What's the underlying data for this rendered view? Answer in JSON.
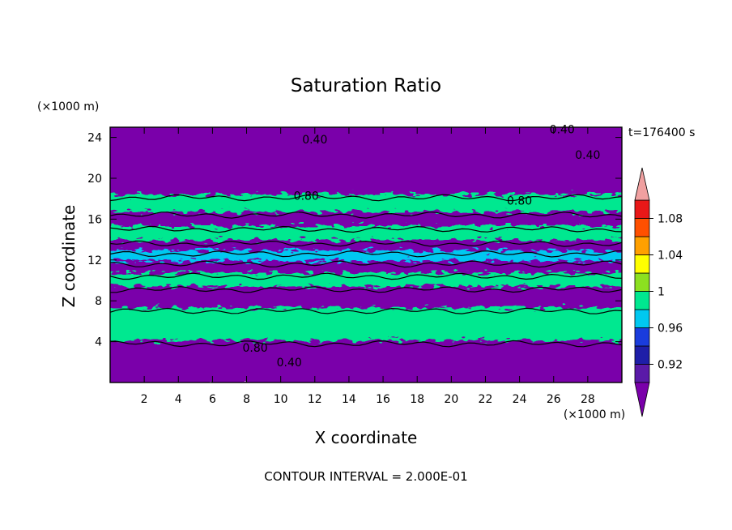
{
  "chart_data": {
    "type": "heatmap",
    "title": "Saturation Ratio",
    "xlabel": "X coordinate",
    "ylabel": "Z coordinate",
    "x_unit": "(×1000 m)",
    "y_unit": "(×1000 m)",
    "time_label": "t=176400 s",
    "footer": "CONTOUR INTERVAL = 2.000E-01",
    "xlim": [
      0,
      30
    ],
    "ylim": [
      0,
      25
    ],
    "x_ticks": [
      2,
      4,
      6,
      8,
      10,
      12,
      14,
      16,
      18,
      20,
      22,
      24,
      26,
      28
    ],
    "y_ticks": [
      4,
      8,
      12,
      16,
      20,
      24
    ],
    "contour_labels": [
      {
        "text": "0.40",
        "x": 12.0,
        "z": 23.8
      },
      {
        "text": "0.40",
        "x": 26.5,
        "z": 24.8
      },
      {
        "text": "0.40",
        "x": 28.0,
        "z": 22.3
      },
      {
        "text": "0.80",
        "x": 11.5,
        "z": 18.3
      },
      {
        "text": "0.80",
        "x": 24.0,
        "z": 17.8
      },
      {
        "text": "0.80",
        "x": 8.5,
        "z": 3.4
      },
      {
        "text": "0.40",
        "x": 10.5,
        "z": 2.0
      }
    ],
    "colorbar": {
      "labels": [
        "1.08",
        "1.04",
        "1",
        "0.96",
        "0.92"
      ],
      "label_values": [
        1.08,
        1.04,
        1.0,
        0.96,
        0.92
      ],
      "levels": [
        0.9,
        0.92,
        0.94,
        0.96,
        0.98,
        1.0,
        1.02,
        1.04,
        1.06,
        1.08,
        1.1
      ],
      "colors": [
        "#5a1aa8",
        "#1e1ea8",
        "#1a3cdc",
        "#00c8f0",
        "#00e890",
        "#8ce020",
        "#ffff00",
        "#ffa000",
        "#ff5000",
        "#e81818"
      ],
      "under_color": "#7a00aa",
      "over_color": "#f0a0a0"
    },
    "field_bands": [
      {
        "z": [
          18.1,
          25.0
        ],
        "value": 0.4
      },
      {
        "z": [
          16.4,
          18.1
        ],
        "value": 0.98
      },
      {
        "z": [
          15.0,
          16.4
        ],
        "value": 0.85
      },
      {
        "z": [
          13.6,
          15.0
        ],
        "value": 0.98
      },
      {
        "z": [
          12.6,
          13.6
        ],
        "value": 0.85
      },
      {
        "z": [
          11.6,
          12.6
        ],
        "value": 0.97
      },
      {
        "z": [
          10.4,
          11.6
        ],
        "value": 0.88
      },
      {
        "z": [
          9.1,
          10.4
        ],
        "value": 0.98
      },
      {
        "z": [
          7.0,
          9.1
        ],
        "value": 0.85
      },
      {
        "z": [
          3.8,
          7.0
        ],
        "value": 0.99
      },
      {
        "z": [
          0.0,
          3.8
        ],
        "value": 0.4
      }
    ]
  }
}
